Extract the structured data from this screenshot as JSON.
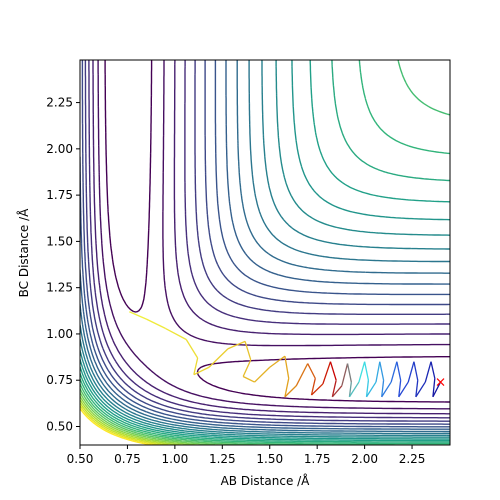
{
  "chart_data": {
    "type": "contour",
    "title": "",
    "xlabel": "AB Distance /Å",
    "ylabel": "BC Distance /Å",
    "xlim": [
      0.5,
      2.45
    ],
    "ylim": [
      0.4,
      2.48
    ],
    "xticks": [
      0.5,
      0.75,
      1.0,
      1.25,
      1.5,
      1.75,
      2.0,
      2.25
    ],
    "xtick_labels": [
      "0.50",
      "0.75",
      "1.00",
      "1.25",
      "1.50",
      "1.75",
      "2.00",
      "2.25"
    ],
    "yticks": [
      0.5,
      0.75,
      1.0,
      1.25,
      1.5,
      1.75,
      2.0,
      2.25
    ],
    "ytick_labels": [
      "0.50",
      "0.75",
      "1.00",
      "1.25",
      "1.50",
      "1.75",
      "2.00",
      "2.25"
    ],
    "grid": false,
    "legend": "none",
    "colormap": "viridis",
    "contour_levels": 24,
    "start_marker": {
      "x": 2.4,
      "y": 0.74,
      "symbol": "x",
      "color": "#ff0000"
    },
    "trajectory": [
      [
        0.76,
        1.12
      ],
      [
        0.85,
        1.08
      ],
      [
        0.95,
        1.03
      ],
      [
        1.06,
        0.97
      ],
      [
        1.12,
        0.87
      ],
      [
        1.1,
        0.78
      ],
      [
        1.18,
        0.82
      ],
      [
        1.28,
        0.92
      ],
      [
        1.37,
        0.96
      ],
      [
        1.4,
        0.86
      ],
      [
        1.36,
        0.77
      ],
      [
        1.42,
        0.74
      ],
      [
        1.5,
        0.82
      ],
      [
        1.58,
        0.88
      ],
      [
        1.6,
        0.76
      ],
      [
        1.58,
        0.66
      ],
      [
        1.64,
        0.72
      ],
      [
        1.7,
        0.84
      ],
      [
        1.74,
        0.76
      ],
      [
        1.72,
        0.67
      ],
      [
        1.78,
        0.73
      ],
      [
        1.82,
        0.85
      ],
      [
        1.85,
        0.75
      ],
      [
        1.83,
        0.66
      ],
      [
        1.88,
        0.72
      ],
      [
        1.91,
        0.84
      ],
      [
        1.93,
        0.74
      ],
      [
        1.92,
        0.66
      ],
      [
        1.97,
        0.74
      ],
      [
        2.0,
        0.85
      ],
      [
        2.02,
        0.75
      ],
      [
        2.01,
        0.66
      ],
      [
        2.06,
        0.74
      ],
      [
        2.08,
        0.85
      ],
      [
        2.1,
        0.75
      ],
      [
        2.09,
        0.66
      ],
      [
        2.14,
        0.74
      ],
      [
        2.17,
        0.85
      ],
      [
        2.19,
        0.75
      ],
      [
        2.18,
        0.66
      ],
      [
        2.23,
        0.74
      ],
      [
        2.26,
        0.85
      ],
      [
        2.28,
        0.75
      ],
      [
        2.27,
        0.66
      ],
      [
        2.32,
        0.74
      ],
      [
        2.35,
        0.85
      ],
      [
        2.37,
        0.76
      ],
      [
        2.36,
        0.66
      ],
      [
        2.4,
        0.74
      ]
    ]
  }
}
